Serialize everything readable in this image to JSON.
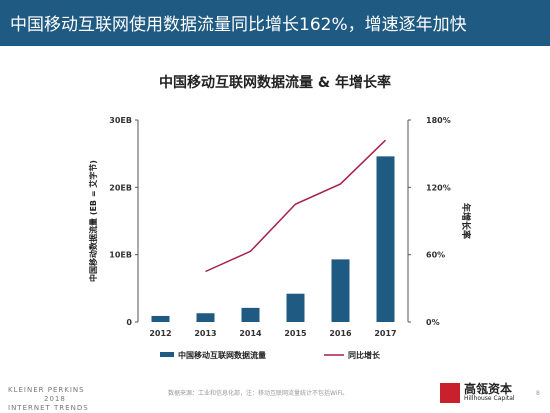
{
  "header": {
    "title": "中国移动互联网使用数据流量同比增长162%，增速逐年加快"
  },
  "chart_data": {
    "type": "bar+line",
    "title": "中国移动互联网数据流量 & 年增长率",
    "categories": [
      "2012",
      "2013",
      "2014",
      "2015",
      "2016",
      "2017"
    ],
    "ylabel": "中国移动数据流量 (EB = 艾字节)",
    "y2label": "年增长率",
    "ylim": [
      0,
      30
    ],
    "y2lim": [
      0,
      180
    ],
    "yticks": [
      "0",
      "10EB",
      "20EB",
      "30EB"
    ],
    "y2ticks": [
      "0%",
      "60%",
      "120%",
      "180%"
    ],
    "series": [
      {
        "name": "中国移动互联网数据流量",
        "type": "bar",
        "axis": "left",
        "color": "#1f5a82",
        "values": [
          0.9,
          1.3,
          2.1,
          4.2,
          9.3,
          24.6
        ]
      },
      {
        "name": "同比增长",
        "type": "line",
        "axis": "right",
        "color": "#a8214b",
        "values": [
          null,
          45,
          63,
          105,
          123,
          162
        ]
      }
    ]
  },
  "footer": {
    "brand_line1": "KLEINER PERKINS",
    "brand_line2": "2018",
    "brand_line3": "INTERNET TRENDS",
    "source": "数据来源：工业和信息化部，注：移动互联网流量统计不包括WiFi。",
    "logo_cn": "高瓴资本",
    "logo_en": "Hillhouse Capital",
    "page": "8"
  }
}
